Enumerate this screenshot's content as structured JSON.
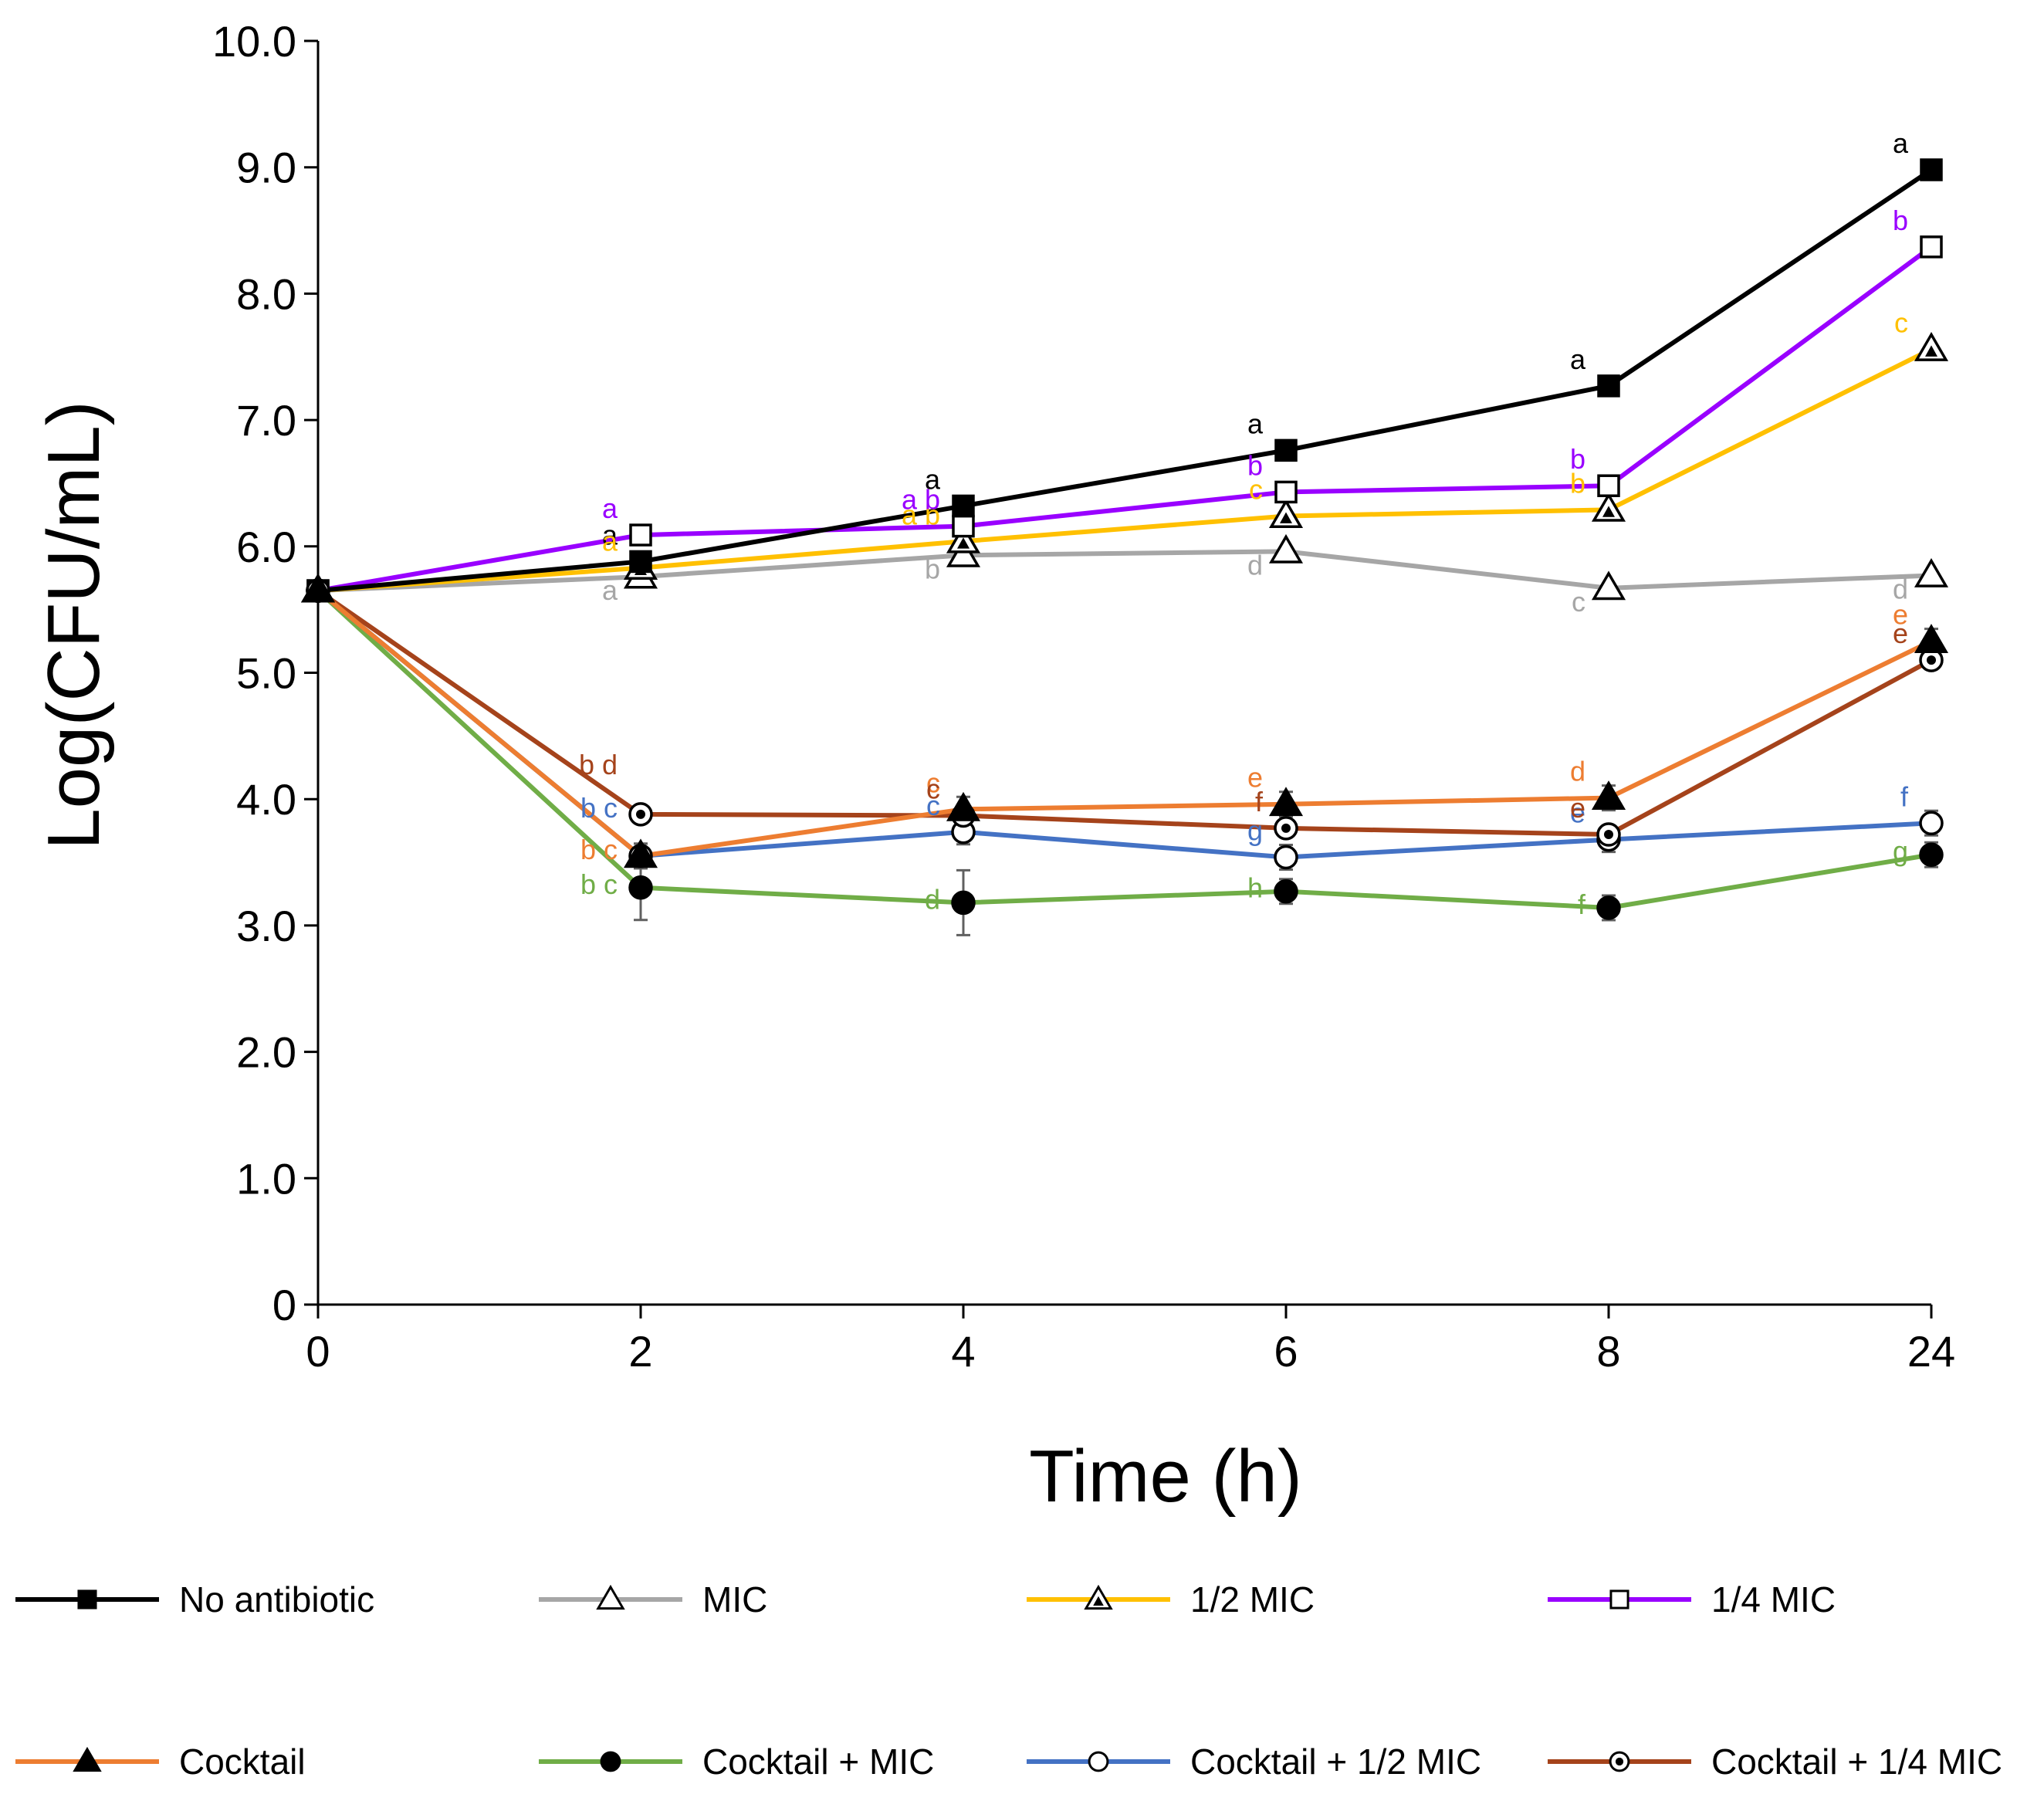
{
  "chart_data": {
    "type": "line",
    "title": "",
    "xlabel": "Time (h)",
    "ylabel": "Log(CFU/mL)",
    "categories": [
      "0",
      "2",
      "4",
      "6",
      "8",
      "24"
    ],
    "ylim": [
      0,
      10
    ],
    "yticks": [
      "0",
      "1.0",
      "2.0",
      "3.0",
      "4.0",
      "5.0",
      "6.0",
      "7.0",
      "8.0",
      "9.0",
      "10.0"
    ],
    "grid": false,
    "legend_position": "bottom",
    "series": [
      {
        "name": "No antibiotic",
        "color": "#000000",
        "marker": "square-filled",
        "values": [
          5.65,
          5.88,
          6.32,
          6.76,
          7.27,
          8.98
        ],
        "letters": [
          "",
          "a",
          "a",
          "a",
          "a",
          "a"
        ]
      },
      {
        "name": "MIC",
        "color": "#a6a6a6",
        "marker": "triangle-open",
        "values": [
          5.65,
          5.76,
          5.93,
          5.96,
          5.67,
          5.77
        ],
        "letters": [
          "",
          "a",
          "b",
          "d",
          "c",
          "d"
        ]
      },
      {
        "name": "1/2 MIC",
        "color": "#ffc000",
        "marker": "triangle-dotted",
        "values": [
          5.65,
          5.83,
          6.04,
          6.24,
          6.29,
          7.56
        ],
        "letters": [
          "",
          "a",
          "a b",
          "c",
          "b",
          "c"
        ]
      },
      {
        "name": "1/4 MIC",
        "color": "#9900ff",
        "marker": "square-open",
        "values": [
          5.65,
          6.09,
          6.16,
          6.43,
          6.48,
          8.37
        ],
        "letters": [
          "",
          "a",
          "a b",
          "b",
          "b",
          "b"
        ]
      },
      {
        "name": "Cocktail",
        "color": "#ed7d31",
        "marker": "triangle-filled",
        "values": [
          5.65,
          3.55,
          3.92,
          3.96,
          4.01,
          5.25
        ],
        "letters": [
          "",
          "b c",
          "c",
          "e",
          "d",
          "e"
        ]
      },
      {
        "name": "Cocktail + MIC",
        "color": "#70ad47",
        "marker": "circle-filled",
        "values": [
          5.65,
          3.3,
          3.18,
          3.27,
          3.14,
          3.56
        ],
        "letters": [
          "",
          "b c",
          "d",
          "h",
          "f",
          "g"
        ]
      },
      {
        "name": "Cocktail + 1/2 MIC",
        "color": "#4472c4",
        "marker": "circle-open",
        "values": [
          5.65,
          3.55,
          3.74,
          3.54,
          3.68,
          3.81
        ],
        "letters": [
          "",
          "b c",
          "c",
          "g",
          "e",
          "f"
        ]
      },
      {
        "name": "Cocktail + 1/4 MIC",
        "color": "#a5431b",
        "marker": "circle-dotted",
        "values": [
          5.65,
          3.88,
          3.87,
          3.77,
          3.72,
          5.1
        ],
        "letters": [
          "",
          "b d",
          "c",
          "f",
          "e",
          "e"
        ]
      }
    ]
  }
}
